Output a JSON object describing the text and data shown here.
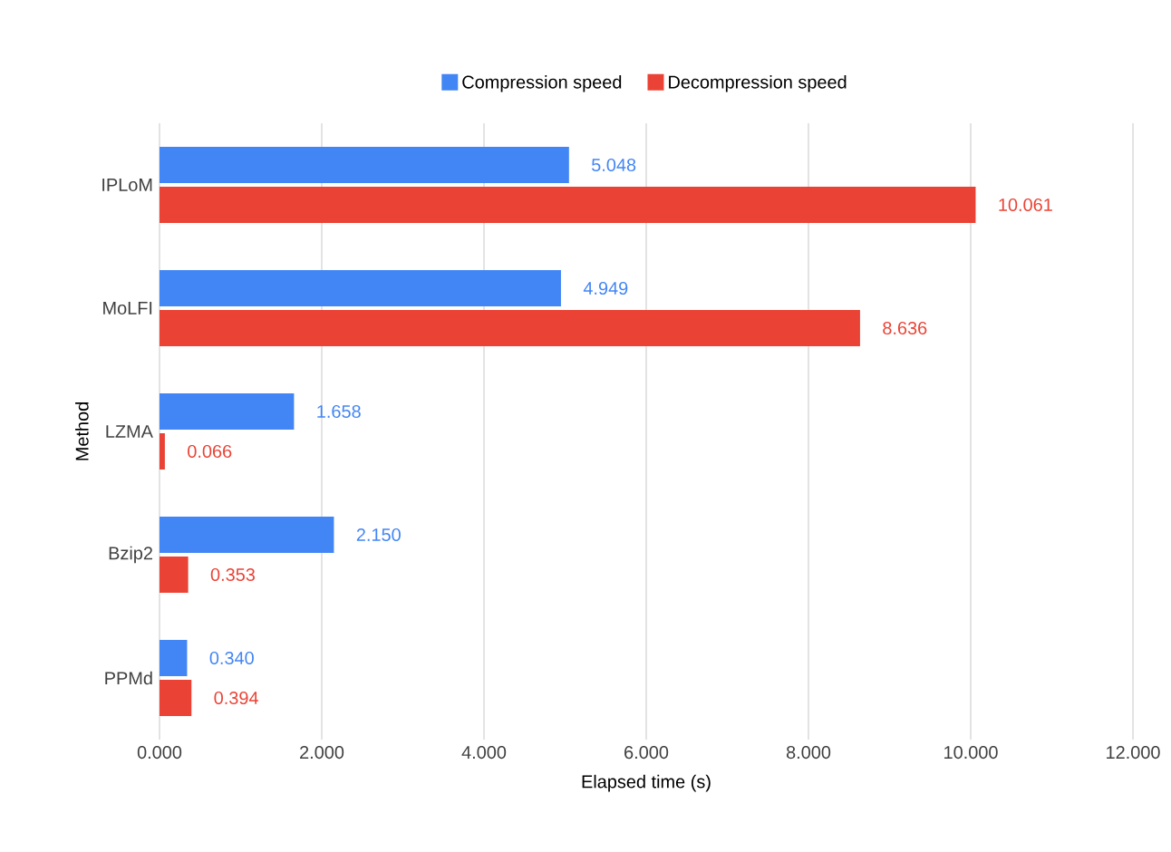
{
  "chart_data": {
    "type": "bar",
    "orientation": "horizontal",
    "categories": [
      "IPLoM",
      "MoLFI",
      "LZMA",
      "Bzip2",
      "PPMd"
    ],
    "series": [
      {
        "name": "Compression speed",
        "color": "#4285f4",
        "values": [
          5.048,
          4.949,
          1.658,
          2.15,
          0.34
        ],
        "value_labels": [
          "5.048",
          "4.949",
          "1.658",
          "2.150",
          "0.340"
        ]
      },
      {
        "name": "Decompression speed",
        "color": "#ea4335",
        "values": [
          10.061,
          8.636,
          0.066,
          0.353,
          0.394
        ],
        "value_labels": [
          "10.061",
          "8.636",
          "0.066",
          "0.353",
          "0.394"
        ]
      }
    ],
    "xlabel": "Elapsed time (s)",
    "ylabel": "Method",
    "xlim": [
      0,
      12
    ],
    "xticks": [
      {
        "value": 0,
        "label": "0.000"
      },
      {
        "value": 2,
        "label": "2.000"
      },
      {
        "value": 4,
        "label": "4.000"
      },
      {
        "value": 6,
        "label": "6.000"
      },
      {
        "value": 8,
        "label": "8.000"
      },
      {
        "value": 10,
        "label": "10.000"
      },
      {
        "value": 12,
        "label": "12.000"
      }
    ],
    "grid": "x",
    "legend": "top"
  }
}
